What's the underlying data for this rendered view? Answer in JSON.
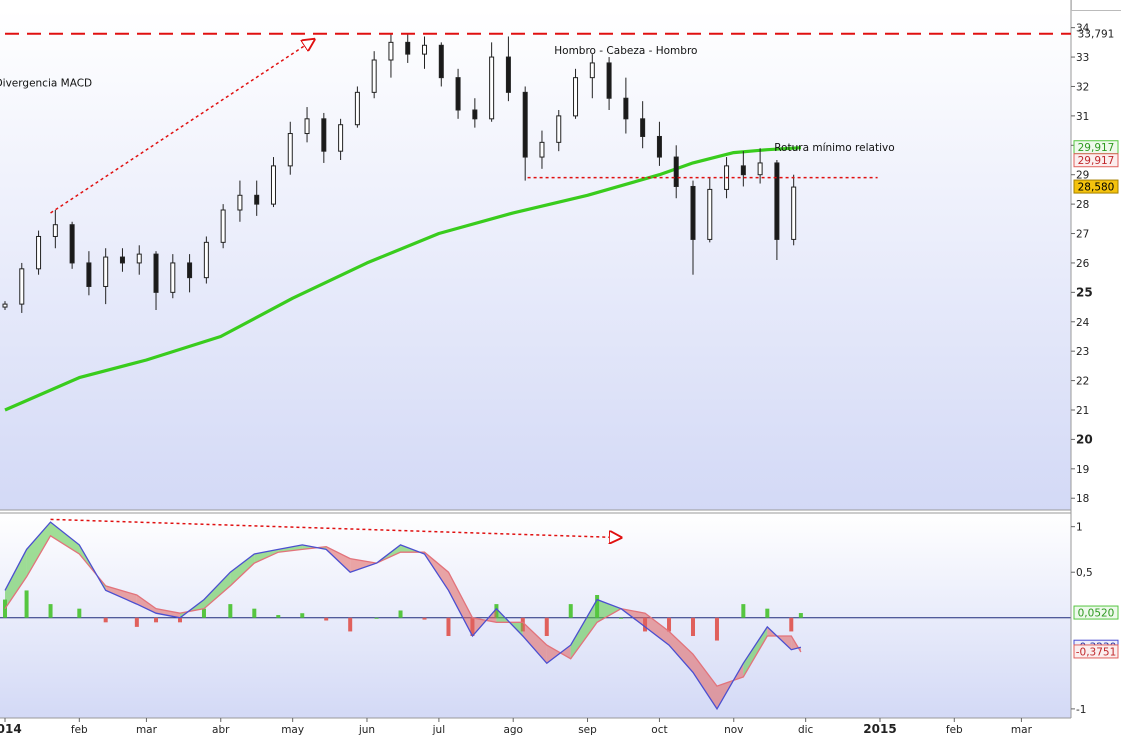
{
  "title": "",
  "colors": {
    "background_top": "#ffffff",
    "background_bottom": "#d3d9f6",
    "up_candle": "#ffffff",
    "down_candle": "#1a1a1a",
    "moving_average": "#39cc1d",
    "annotation_red": "#e01010",
    "macd_line": "#4b4fd0",
    "signal_line": "#e2737b",
    "hist_positive": "#55c640",
    "hist_negative": "#e0605c",
    "zero_line": "#1f2b7a",
    "last_price_tag": "#f4c20d"
  },
  "chart_data": [
    {
      "type": "candlestick",
      "series": [
        {
          "name": "Precio",
          "kind": "ohlc",
          "points": [
            [
              "2014-01-01",
              24.5,
              24.7,
              24.4,
              24.6
            ],
            [
              "2014-01-08",
              24.6,
              26.0,
              24.3,
              25.8
            ],
            [
              "2014-01-15",
              25.8,
              27.1,
              25.6,
              26.9
            ],
            [
              "2014-01-22",
              26.9,
              27.8,
              26.5,
              27.3
            ],
            [
              "2014-01-29",
              27.3,
              27.4,
              25.8,
              26.0
            ],
            [
              "2014-02-05",
              26.0,
              26.4,
              24.9,
              25.2
            ],
            [
              "2014-02-12",
              25.2,
              26.5,
              24.6,
              26.2
            ],
            [
              "2014-02-19",
              26.2,
              26.5,
              25.7,
              26.0
            ],
            [
              "2014-02-26",
              26.0,
              26.6,
              25.6,
              26.3
            ],
            [
              "2014-03-05",
              26.3,
              26.4,
              24.4,
              25.0
            ],
            [
              "2014-03-12",
              25.0,
              26.3,
              24.8,
              26.0
            ],
            [
              "2014-03-19",
              26.0,
              26.3,
              25.0,
              25.5
            ],
            [
              "2014-03-26",
              25.5,
              26.9,
              25.3,
              26.7
            ],
            [
              "2014-04-02",
              26.7,
              28.0,
              26.5,
              27.8
            ],
            [
              "2014-04-09",
              27.8,
              28.8,
              27.4,
              28.3
            ],
            [
              "2014-04-16",
              28.3,
              28.8,
              27.6,
              28.0
            ],
            [
              "2014-04-23",
              28.0,
              29.6,
              27.9,
              29.3
            ],
            [
              "2014-04-30",
              29.3,
              30.8,
              29.0,
              30.4
            ],
            [
              "2014-05-07",
              30.4,
              31.3,
              30.1,
              30.9
            ],
            [
              "2014-05-14",
              30.9,
              31.1,
              29.4,
              29.8
            ],
            [
              "2014-05-21",
              29.8,
              30.9,
              29.5,
              30.7
            ],
            [
              "2014-05-28",
              30.7,
              32.0,
              30.6,
              31.8
            ],
            [
              "2014-06-04",
              31.8,
              33.2,
              31.6,
              32.9
            ],
            [
              "2014-06-11",
              32.9,
              33.8,
              32.3,
              33.5
            ],
            [
              "2014-06-18",
              33.5,
              33.79,
              32.8,
              33.1
            ],
            [
              "2014-06-25",
              33.1,
              33.7,
              32.6,
              33.4
            ],
            [
              "2014-07-02",
              33.4,
              33.5,
              32.0,
              32.3
            ],
            [
              "2014-07-09",
              32.3,
              32.6,
              30.9,
              31.2
            ],
            [
              "2014-07-16",
              31.2,
              31.6,
              30.6,
              30.9
            ],
            [
              "2014-07-23",
              30.9,
              33.5,
              30.8,
              33.0
            ],
            [
              "2014-07-30",
              33.0,
              33.7,
              31.5,
              31.8
            ],
            [
              "2014-08-06",
              31.8,
              32.0,
              28.8,
              29.6
            ],
            [
              "2014-08-13",
              29.6,
              30.5,
              29.2,
              30.1
            ],
            [
              "2014-08-20",
              30.1,
              31.2,
              29.8,
              31.0
            ],
            [
              "2014-08-27",
              31.0,
              32.6,
              30.9,
              32.3
            ],
            [
              "2014-09-03",
              32.3,
              33.1,
              31.6,
              32.8
            ],
            [
              "2014-09-10",
              32.8,
              33.0,
              31.2,
              31.6
            ],
            [
              "2014-09-17",
              31.6,
              32.3,
              30.4,
              30.9
            ],
            [
              "2014-09-24",
              30.9,
              31.5,
              29.9,
              30.3
            ],
            [
              "2014-10-01",
              30.3,
              30.8,
              29.3,
              29.6
            ],
            [
              "2014-10-08",
              29.6,
              30.0,
              28.2,
              28.6
            ],
            [
              "2014-10-15",
              28.6,
              28.8,
              25.6,
              26.8
            ],
            [
              "2014-10-22",
              26.8,
              28.9,
              26.7,
              28.5
            ],
            [
              "2014-10-29",
              28.5,
              29.6,
              28.2,
              29.3
            ],
            [
              "2014-11-05",
              29.3,
              29.8,
              28.6,
              29.0
            ],
            [
              "2014-11-12",
              29.0,
              29.9,
              28.7,
              29.4
            ],
            [
              "2014-11-19",
              29.4,
              29.5,
              26.1,
              26.8
            ],
            [
              "2014-11-26",
              26.8,
              29.0,
              26.6,
              28.58
            ]
          ]
        },
        {
          "name": "Media móvil",
          "kind": "line",
          "x": [
            "2014-01-01",
            "2014-02-01",
            "2014-03-01",
            "2014-04-01",
            "2014-05-01",
            "2014-06-01",
            "2014-07-01",
            "2014-08-01",
            "2014-09-01",
            "2014-10-01",
            "2014-10-15",
            "2014-11-01",
            "2014-11-15",
            "2014-11-29"
          ],
          "y": [
            21.0,
            22.1,
            22.7,
            23.5,
            24.8,
            26.0,
            27.0,
            27.7,
            28.3,
            29.0,
            29.4,
            29.75,
            29.85,
            29.917
          ]
        }
      ],
      "ylim": [
        17.6,
        34.6
      ],
      "yticks": [
        "18",
        "19",
        "20",
        "21",
        "22",
        "23",
        "24",
        "25",
        "26",
        "27",
        "28",
        "29",
        "30",
        "31",
        "32",
        "33",
        "34"
      ],
      "bold_yticks": [
        "20",
        "25"
      ],
      "value_tags": [
        {
          "label": "33,791",
          "value": 33.791,
          "kind": "plain"
        },
        {
          "label": "29,917",
          "value": 29.917,
          "kind": "green"
        },
        {
          "label": "29,917",
          "value": 29.917,
          "kind": "red",
          "offset": 1
        },
        {
          "label": "28,580",
          "value": 28.58,
          "kind": "last"
        }
      ],
      "annotations": [
        {
          "label": "Divergencia MACD",
          "kind": "text",
          "x": "2014-01-17",
          "y": 32.0
        },
        {
          "label": "Hombro - Cabeza - Hombro",
          "kind": "text",
          "x": "2014-09-17",
          "y": 33.1
        },
        {
          "label": "Rotura mínimo relativo",
          "kind": "text",
          "x": "2014-12-13",
          "y": 29.8
        },
        {
          "kind": "dashed-hline",
          "y": 33.791,
          "x1": "2014-01-01",
          "x2": "2014-12-31"
        },
        {
          "kind": "dotted-hline",
          "y": 28.9,
          "x1": "2014-08-07",
          "x2": "2014-12-31"
        },
        {
          "kind": "dotted-arrow",
          "x1": "2014-01-20",
          "y1": 27.7,
          "x2": "2014-05-10",
          "y2": 33.6
        }
      ]
    },
    {
      "type": "macd",
      "x": [
        "2014-01-01",
        "2014-01-10",
        "2014-01-20",
        "2014-02-01",
        "2014-02-12",
        "2014-02-25",
        "2014-03-05",
        "2014-03-15",
        "2014-03-25",
        "2014-04-05",
        "2014-04-15",
        "2014-04-25",
        "2014-05-05",
        "2014-05-15",
        "2014-05-25",
        "2014-06-05",
        "2014-06-15",
        "2014-06-25",
        "2014-07-05",
        "2014-07-15",
        "2014-07-25",
        "2014-08-05",
        "2014-08-15",
        "2014-08-25",
        "2014-09-05",
        "2014-09-15",
        "2014-09-25",
        "2014-10-05",
        "2014-10-15",
        "2014-10-25",
        "2014-11-05",
        "2014-11-15",
        "2014-11-25",
        "2014-11-29"
      ],
      "series": [
        {
          "name": "MACD",
          "values": [
            0.3,
            0.75,
            1.05,
            0.8,
            0.3,
            0.15,
            0.05,
            0.0,
            0.2,
            0.5,
            0.7,
            0.75,
            0.8,
            0.75,
            0.5,
            0.6,
            0.8,
            0.7,
            0.3,
            -0.2,
            0.1,
            -0.2,
            -0.5,
            -0.3,
            0.2,
            0.1,
            -0.1,
            -0.3,
            -0.6,
            -1.0,
            -0.5,
            -0.1,
            -0.35,
            -0.323
          ]
        },
        {
          "name": "Señal",
          "values": [
            0.1,
            0.45,
            0.9,
            0.7,
            0.35,
            0.25,
            0.1,
            0.05,
            0.1,
            0.35,
            0.6,
            0.72,
            0.75,
            0.78,
            0.65,
            0.6,
            0.72,
            0.72,
            0.5,
            0.0,
            -0.05,
            -0.05,
            -0.3,
            -0.45,
            -0.05,
            0.1,
            0.05,
            -0.15,
            -0.4,
            -0.75,
            -0.65,
            -0.2,
            -0.2,
            -0.3751
          ]
        },
        {
          "name": "Histograma",
          "kind": "bar",
          "values": [
            0.2,
            0.3,
            0.15,
            0.1,
            -0.05,
            -0.1,
            -0.05,
            -0.05,
            0.1,
            0.15,
            0.1,
            0.03,
            0.05,
            -0.03,
            -0.15,
            0.0,
            0.08,
            -0.02,
            -0.2,
            -0.2,
            0.15,
            -0.15,
            -0.2,
            0.15,
            0.25,
            0.0,
            -0.15,
            -0.15,
            -0.2,
            -0.25,
            0.15,
            0.1,
            -0.15,
            0.052
          ]
        }
      ],
      "ylim": [
        -1.1,
        1.15
      ],
      "yticks": [
        "1",
        "0,5",
        "-1"
      ],
      "value_tags": [
        {
          "label": "0,0520",
          "value": 0.052,
          "kind": "green"
        },
        {
          "label": "-0,3230",
          "value": -0.323,
          "kind": "blue"
        },
        {
          "label": "-0,3751",
          "value": -0.3751,
          "kind": "red"
        }
      ],
      "annotations": [
        {
          "kind": "dotted-arrow",
          "x1": "2014-01-20",
          "y1": 1.08,
          "x2": "2014-09-15",
          "y2": 0.88
        }
      ]
    }
  ],
  "xaxis": {
    "range": [
      "2014-01-01",
      "2015-03-05"
    ],
    "ticks": [
      {
        "label": "2014",
        "x": "2014-01-01",
        "bold": true
      },
      {
        "label": "feb",
        "x": "2014-02-01"
      },
      {
        "label": "mar",
        "x": "2014-03-01"
      },
      {
        "label": "abr",
        "x": "2014-04-01"
      },
      {
        "label": "may",
        "x": "2014-05-01"
      },
      {
        "label": "jun",
        "x": "2014-06-01"
      },
      {
        "label": "jul",
        "x": "2014-07-01"
      },
      {
        "label": "ago",
        "x": "2014-08-01"
      },
      {
        "label": "sep",
        "x": "2014-09-01"
      },
      {
        "label": "oct",
        "x": "2014-10-01"
      },
      {
        "label": "nov",
        "x": "2014-11-01"
      },
      {
        "label": "dic",
        "x": "2014-12-01"
      },
      {
        "label": "2015",
        "x": "2015-01-01",
        "bold": true
      },
      {
        "label": "feb",
        "x": "2015-02-01"
      },
      {
        "label": "mar",
        "x": "2015-03-01"
      }
    ]
  }
}
